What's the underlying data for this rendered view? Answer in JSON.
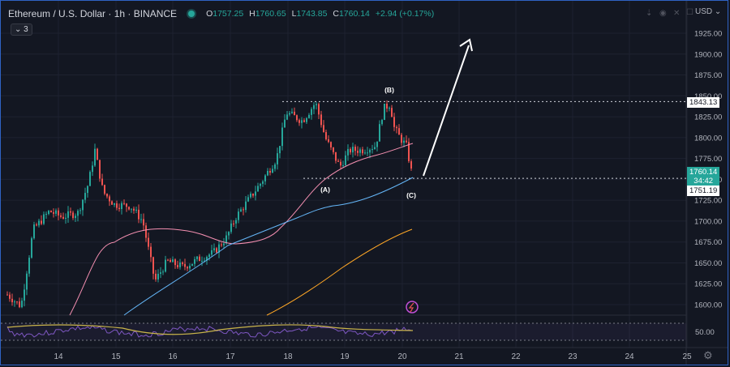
{
  "header": {
    "title": "Ethereum / U.S. Dollar · 1h · BINANCE",
    "o_label": "O",
    "o": "1757.25",
    "h_label": "H",
    "h": "1760.65",
    "l_label": "L",
    "l": "1743.85",
    "c_label": "C",
    "c": "1760.14",
    "change": "+2.94 (+0.17%)"
  },
  "indicator_toggle": "3",
  "currency": "USD",
  "toolbar_icons": [
    "arrow-down-icon",
    "eye-icon",
    "close-icon",
    "maximize-icon"
  ],
  "price_labels": {
    "resistance": "1843.13",
    "current": "1760.14",
    "countdown": "34:42",
    "support": "1751.19"
  },
  "wave_labels": [
    "(A)",
    "(B)",
    "(C)"
  ],
  "chart_data": {
    "type": "candlestick",
    "price_axis": [
      1925,
      1900,
      1875,
      1850,
      1825,
      1800,
      1775,
      1750,
      1725,
      1700,
      1675,
      1650,
      1625,
      1600
    ],
    "price_tick_labels": [
      "1925.00",
      "1900.00",
      "1875.00",
      "1850.00",
      "1825.00",
      "1800.00",
      "1775.00",
      "1750.00",
      "1725.00",
      "1700.00",
      "1675.00",
      "1650.00",
      "1625.00",
      "1600.00"
    ],
    "rsi_tick": "50.00",
    "x_tick_labels": [
      "14",
      "15",
      "16",
      "17",
      "18",
      "19",
      "20",
      "21",
      "22",
      "23",
      "24",
      "25"
    ],
    "horizontal_levels": [
      1843.13,
      1751.19
    ],
    "colors": {
      "up": "#26a69a",
      "down": "#ef5350",
      "ma_fast": "#f48fb1",
      "ma_mid": "#64b5f6",
      "ma_slow": "#ffa726",
      "rsi": "#7e57c2",
      "rsi_ma": "#c9b44a",
      "arrow": "#ffffff"
    }
  }
}
